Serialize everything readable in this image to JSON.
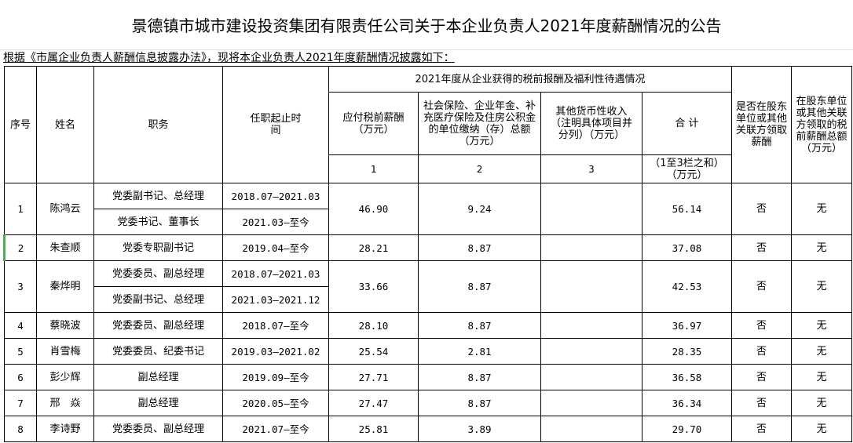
{
  "title": "景德镇市城市建设投资集团有限责任公司关于本企业负责人2021年度薪酬情况的公告",
  "intro": "根据《市属企业负责人薪酬信息披露办法》，现将本企业负责人2021年度薪酬情况披露如下：",
  "headers": {
    "seq": "序号",
    "name": "姓名",
    "position": "职务",
    "term": "任职起止时间",
    "group": "2021年度从企业获得的税前报酬及福利性待遇情况",
    "salary": "应付税前薪酬（万元）",
    "insurance": "社会保险、企业年金、补充医疗保险及住房公积金的单位缴纳（存）总额（万元）",
    "other": "其他货币性收入（注明具体项目并分列）（万元）",
    "total": "合 计",
    "col1": "1",
    "col2": "2",
    "col3": "3",
    "total_note": "（1至3栏之和）（万元）",
    "shareholder": "是否在股东单位或其他关联方领取薪酬",
    "shareholder_amount": "在股东单位或其他关联方领取的税前薪酬总额（万元）"
  },
  "rows": [
    {
      "seq": "1",
      "name": "陈鸿云",
      "roles": [
        {
          "position": "党委副书记、总经理",
          "term": "2018.07—2021.03"
        },
        {
          "position": "党委书记、董事长",
          "term": "2021.03—至今"
        }
      ],
      "salary": "46.90",
      "insurance": "9.24",
      "other": "",
      "total": "56.14",
      "shareholder": "否",
      "amount": "无"
    },
    {
      "seq": "2",
      "name": "朱查顺",
      "roles": [
        {
          "position": "党委专职副书记",
          "term": "2019.04—至今"
        }
      ],
      "salary": "28.21",
      "insurance": "8.87",
      "other": "",
      "total": "37.08",
      "shareholder": "否",
      "amount": "无"
    },
    {
      "seq": "3",
      "name": "秦烨明",
      "roles": [
        {
          "position": "党委委员、副总经理",
          "term": "2018.07—2021.03"
        },
        {
          "position": "党委副书记、总经理",
          "term": "2021.03—2021.12"
        }
      ],
      "salary": "33.66",
      "insurance": "8.87",
      "other": "",
      "total": "42.53",
      "shareholder": "否",
      "amount": "无"
    },
    {
      "seq": "4",
      "name": "蔡晓波",
      "roles": [
        {
          "position": "党委委员、副总经理",
          "term": "2018.07—至今"
        }
      ],
      "salary": "28.10",
      "insurance": "8.87",
      "other": "",
      "total": "36.97",
      "shareholder": "否",
      "amount": "无"
    },
    {
      "seq": "5",
      "name": "肖雪梅",
      "roles": [
        {
          "position": "党委委员、纪委书记",
          "term": "2019.03—2021.02"
        }
      ],
      "salary": "25.54",
      "insurance": "2.81",
      "other": "",
      "total": "28.35",
      "shareholder": "否",
      "amount": "无"
    },
    {
      "seq": "6",
      "name": "彭少辉",
      "roles": [
        {
          "position": "副总经理",
          "term": "2019.09—至今"
        }
      ],
      "salary": "27.71",
      "insurance": "8.87",
      "other": "",
      "total": "36.58",
      "shareholder": "否",
      "amount": "无"
    },
    {
      "seq": "7",
      "name": "邢　焱",
      "roles": [
        {
          "position": "副总经理",
          "term": "2020.05—至今"
        }
      ],
      "salary": "27.47",
      "insurance": "8.87",
      "other": "",
      "total": "36.34",
      "shareholder": "否",
      "amount": "无"
    },
    {
      "seq": "8",
      "name": "李诗野",
      "roles": [
        {
          "position": "党委委员、副总经理",
          "term": "2021.07—至今"
        }
      ],
      "salary": "25.81",
      "insurance": "3.89",
      "other": "",
      "total": "29.70",
      "shareholder": "否",
      "amount": "无"
    }
  ]
}
